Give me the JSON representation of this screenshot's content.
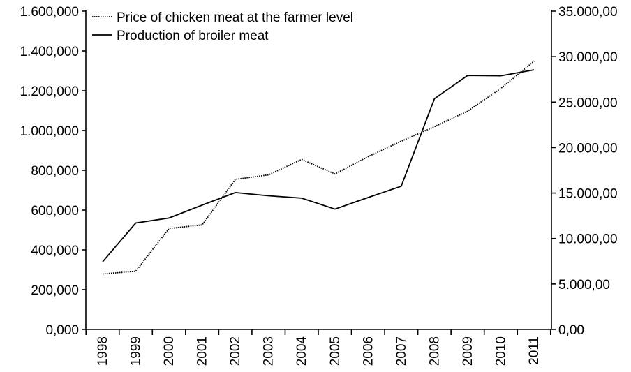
{
  "chart_data": {
    "type": "line",
    "categories": [
      "1998",
      "1999",
      "2000",
      "2001",
      "2002",
      "2003",
      "2004",
      "2005",
      "2006",
      "2007",
      "2008",
      "2009",
      "2010",
      "2011"
    ],
    "y_left": {
      "ylim": [
        0,
        1600000
      ],
      "tick_values": [
        0,
        200000,
        400000,
        600000,
        800000,
        1000000,
        1200000,
        1400000,
        1600000
      ],
      "tick_labels": [
        "0,000",
        "200,000",
        "400,000",
        "600,000",
        "800,000",
        "1.000,000",
        "1.200,000",
        "1.400,000",
        "1.600,000"
      ]
    },
    "y_right": {
      "ylim": [
        0,
        35000
      ],
      "tick_values": [
        0,
        5000,
        10000,
        15000,
        20000,
        25000,
        30000,
        35000
      ],
      "tick_labels": [
        "0,00",
        "5.000,00",
        "10.000,00",
        "15.000,00",
        "20.000,00",
        "25.000,00",
        "30.000,00",
        "35.000,00"
      ]
    },
    "series": [
      {
        "name": "Price of chicken meat at the farmer level",
        "axis": "right",
        "style": "dotted",
        "values": [
          6100,
          6400,
          11100,
          11500,
          16500,
          17000,
          18700,
          17100,
          19000,
          20700,
          22300,
          24000,
          26500,
          29500
        ]
      },
      {
        "name": "Production of broiler meat",
        "axis": "left",
        "style": "solid",
        "values": [
          340000,
          535000,
          560000,
          625000,
          688000,
          672000,
          660000,
          605000,
          663000,
          720000,
          1160000,
          1277000,
          1275000,
          1305000
        ]
      }
    ],
    "legend_position": "top-left",
    "grid": false,
    "colors": {
      "line": "#000000",
      "background": "#ffffff"
    }
  }
}
